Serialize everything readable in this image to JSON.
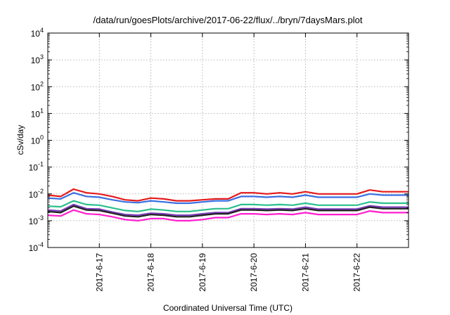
{
  "chart_data": {
    "type": "line",
    "title": "/data/run/goesPlots/archive/2017-06-22/flux/../bryn/7daysMars.plot",
    "xlabel": "Coordinated Universal Time (UTC)",
    "ylabel": "cSv/day",
    "yscale": "log",
    "ylim": [
      0.0001,
      10000
    ],
    "xlim": [
      "2017-06-16 00:00",
      "2017-06-23 00:00"
    ],
    "y_ticks": [
      {
        "value": 0.0001,
        "base": "10",
        "exp": "-4"
      },
      {
        "value": 0.001,
        "base": "10",
        "exp": "-3"
      },
      {
        "value": 0.01,
        "base": "10",
        "exp": "-2"
      },
      {
        "value": 0.1,
        "base": "10",
        "exp": "-1"
      },
      {
        "value": 1,
        "base": "10",
        "exp": "0"
      },
      {
        "value": 10,
        "base": "10",
        "exp": "1"
      },
      {
        "value": 100,
        "base": "10",
        "exp": "2"
      },
      {
        "value": 1000,
        "base": "10",
        "exp": "3"
      },
      {
        "value": 10000,
        "base": "10",
        "exp": "4"
      }
    ],
    "x_ticks": [
      "2017-6-17",
      "2017-6-18",
      "2017-6-19",
      "2017-6-20",
      "2017-6-21",
      "2017-6-22"
    ],
    "x_tick_dates": [
      "2017-06-17",
      "2017-06-18",
      "2017-06-19",
      "2017-06-20",
      "2017-06-21",
      "2017-06-22"
    ],
    "grid": true,
    "legend": "none",
    "x": [
      "2017-06-16 00:00",
      "2017-06-16 06:00",
      "2017-06-16 12:00",
      "2017-06-16 18:00",
      "2017-06-17 00:00",
      "2017-06-17 06:00",
      "2017-06-17 12:00",
      "2017-06-17 18:00",
      "2017-06-18 00:00",
      "2017-06-18 06:00",
      "2017-06-18 12:00",
      "2017-06-18 18:00",
      "2017-06-19 00:00",
      "2017-06-19 06:00",
      "2017-06-19 12:00",
      "2017-06-19 18:00",
      "2017-06-20 00:00",
      "2017-06-20 06:00",
      "2017-06-20 12:00",
      "2017-06-20 18:00",
      "2017-06-21 00:00",
      "2017-06-21 06:00",
      "2017-06-21 12:00",
      "2017-06-21 18:00",
      "2017-06-22 00:00",
      "2017-06-22 06:00",
      "2017-06-22 12:00",
      "2017-06-22 18:00",
      "2017-06-23 00:00"
    ],
    "series": [
      {
        "color": "#e41a1c",
        "values": [
          0.009,
          0.008,
          0.015,
          0.011,
          0.01,
          0.008,
          0.006,
          0.0055,
          0.007,
          0.0065,
          0.0055,
          0.0055,
          0.006,
          0.0065,
          0.0065,
          0.011,
          0.011,
          0.01,
          0.011,
          0.01,
          0.012,
          0.01,
          0.01,
          0.01,
          0.01,
          0.014,
          0.012,
          0.012,
          0.012
        ]
      },
      {
        "color": "#3b6fe0",
        "values": [
          0.007,
          0.0065,
          0.011,
          0.008,
          0.0075,
          0.006,
          0.005,
          0.0047,
          0.0055,
          0.005,
          0.0045,
          0.0045,
          0.005,
          0.0055,
          0.0055,
          0.008,
          0.008,
          0.0075,
          0.008,
          0.0075,
          0.009,
          0.0075,
          0.0075,
          0.0075,
          0.0075,
          0.01,
          0.009,
          0.009,
          0.009
        ]
      },
      {
        "color": "#2bbf8e",
        "values": [
          0.0035,
          0.0033,
          0.0055,
          0.004,
          0.0038,
          0.003,
          0.0024,
          0.0022,
          0.0027,
          0.0025,
          0.0022,
          0.0022,
          0.0025,
          0.0028,
          0.0028,
          0.004,
          0.004,
          0.0038,
          0.004,
          0.0038,
          0.0045,
          0.0038,
          0.0038,
          0.0038,
          0.0038,
          0.005,
          0.0045,
          0.0045,
          0.0045
        ]
      },
      {
        "color": "#7a3db8",
        "values": [
          0.0025,
          0.0023,
          0.004,
          0.0028,
          0.0027,
          0.0021,
          0.0017,
          0.0016,
          0.0019,
          0.0018,
          0.0016,
          0.0016,
          0.0018,
          0.002,
          0.002,
          0.0028,
          0.0028,
          0.0027,
          0.0028,
          0.0027,
          0.0032,
          0.0027,
          0.0027,
          0.0027,
          0.0027,
          0.0036,
          0.0032,
          0.0032,
          0.0032
        ]
      },
      {
        "color": "#222222",
        "values": [
          0.0022,
          0.002,
          0.0035,
          0.0025,
          0.0024,
          0.0019,
          0.0015,
          0.0014,
          0.0017,
          0.0016,
          0.0014,
          0.0014,
          0.0016,
          0.0018,
          0.0018,
          0.0025,
          0.0025,
          0.0024,
          0.0025,
          0.0024,
          0.0028,
          0.0024,
          0.0024,
          0.0024,
          0.0024,
          0.0032,
          0.0028,
          0.0028,
          0.0028
        ]
      },
      {
        "color": "#ff1fd0",
        "values": [
          0.0016,
          0.0015,
          0.0025,
          0.0018,
          0.0017,
          0.0014,
          0.0011,
          0.001,
          0.0012,
          0.0012,
          0.001,
          0.001,
          0.0011,
          0.0013,
          0.0013,
          0.0018,
          0.0018,
          0.0017,
          0.0018,
          0.0017,
          0.002,
          0.0017,
          0.0017,
          0.0017,
          0.0017,
          0.0023,
          0.002,
          0.002,
          0.002
        ]
      }
    ]
  }
}
